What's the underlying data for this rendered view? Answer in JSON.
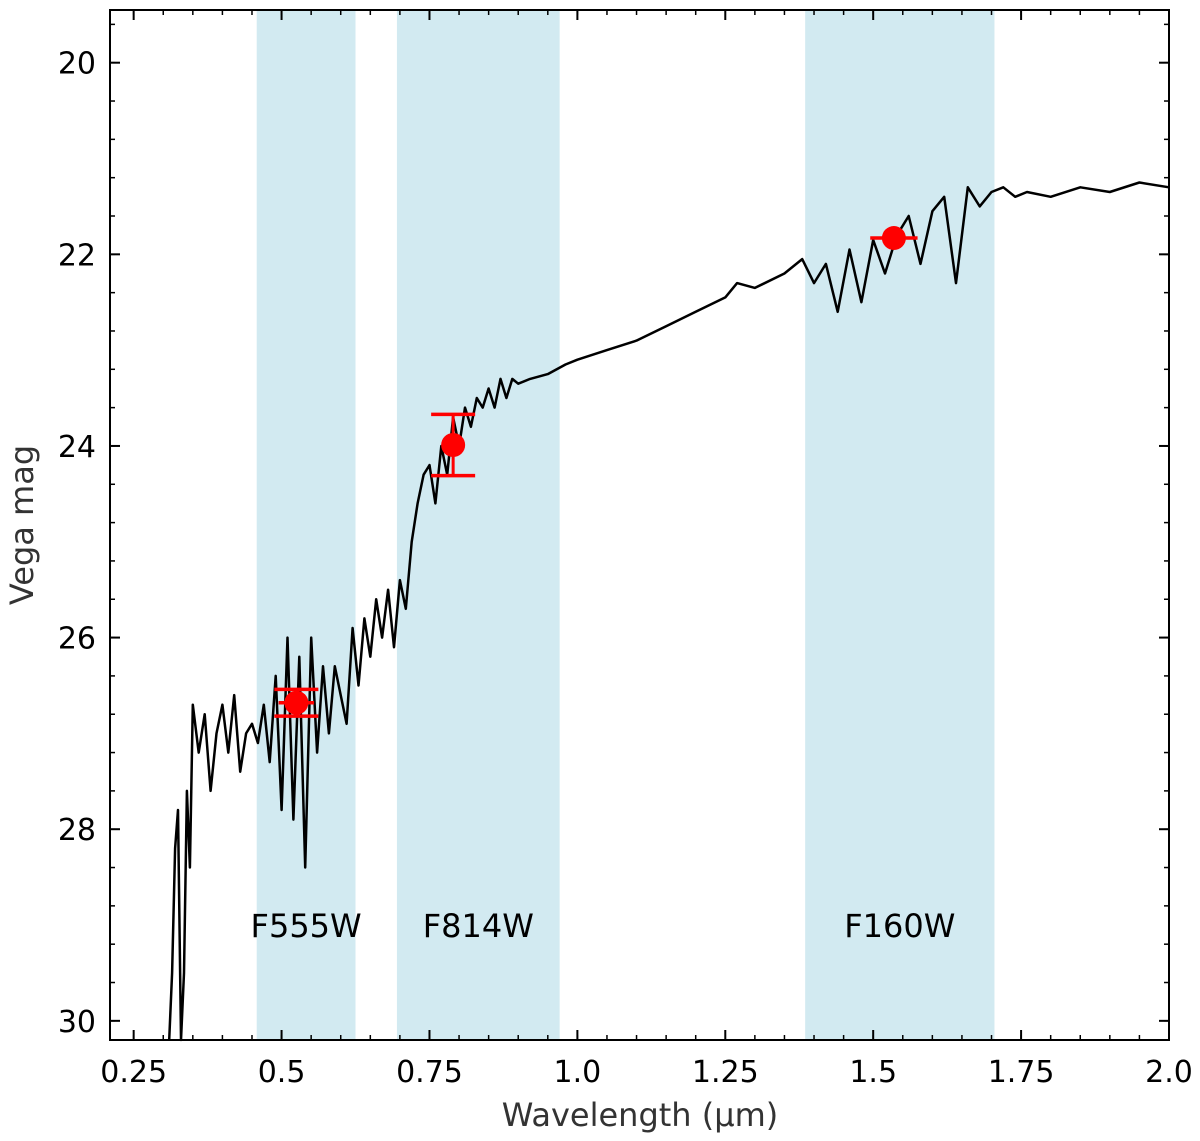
{
  "chart_data": {
    "type": "line",
    "title": "",
    "xlabel": "Wavelength (μm)",
    "ylabel": "Vega mag",
    "xlim": [
      0.21,
      2.0
    ],
    "ylim": [
      30.2,
      19.45
    ],
    "y_inverted": true,
    "grid": false,
    "x_ticks": [
      "0.25",
      "0.5",
      "0.75",
      "1.0",
      "1.25",
      "1.5",
      "1.75",
      "2.0"
    ],
    "y_ticks": [
      "20",
      "22",
      "24",
      "26",
      "28",
      "30"
    ],
    "colors": {
      "spectrum": "#000000",
      "photometry": "#ff0000",
      "band_fill": "#add8e6"
    },
    "bands": [
      {
        "label": "F555W",
        "x_min": 0.458,
        "x_max": 0.625
      },
      {
        "label": "F814W",
        "x_min": 0.695,
        "x_max": 0.97
      },
      {
        "label": "F160W",
        "x_min": 1.385,
        "x_max": 1.705
      }
    ],
    "photometry": [
      {
        "x": 0.525,
        "y": 26.68,
        "yerr": 0.14,
        "xerr": 0.03
      },
      {
        "x": 0.79,
        "y": 23.99,
        "yerr": 0.32,
        "xerr": 0.0
      },
      {
        "x": 1.535,
        "y": 21.83,
        "yerr": 0.0,
        "xerr": 0.04
      }
    ],
    "spectrum": {
      "name": "",
      "x": [
        0.31,
        0.315,
        0.32,
        0.325,
        0.33,
        0.335,
        0.34,
        0.345,
        0.35,
        0.36,
        0.37,
        0.38,
        0.39,
        0.4,
        0.41,
        0.42,
        0.43,
        0.44,
        0.45,
        0.46,
        0.47,
        0.48,
        0.49,
        0.5,
        0.51,
        0.52,
        0.53,
        0.54,
        0.55,
        0.56,
        0.57,
        0.58,
        0.59,
        0.6,
        0.61,
        0.62,
        0.63,
        0.64,
        0.65,
        0.66,
        0.67,
        0.68,
        0.69,
        0.7,
        0.71,
        0.72,
        0.73,
        0.74,
        0.75,
        0.76,
        0.77,
        0.78,
        0.79,
        0.8,
        0.81,
        0.82,
        0.83,
        0.84,
        0.85,
        0.86,
        0.87,
        0.88,
        0.89,
        0.9,
        0.92,
        0.95,
        0.98,
        1.0,
        1.05,
        1.1,
        1.15,
        1.2,
        1.25,
        1.27,
        1.3,
        1.35,
        1.38,
        1.4,
        1.42,
        1.44,
        1.46,
        1.48,
        1.5,
        1.52,
        1.54,
        1.56,
        1.58,
        1.6,
        1.62,
        1.64,
        1.66,
        1.68,
        1.7,
        1.72,
        1.74,
        1.76,
        1.8,
        1.85,
        1.9,
        1.95,
        2.0
      ],
      "y": [
        30.2,
        29.5,
        28.2,
        27.8,
        30.2,
        29.5,
        27.6,
        28.4,
        26.7,
        27.2,
        26.8,
        27.6,
        27.0,
        26.7,
        27.2,
        26.6,
        27.4,
        27.0,
        26.9,
        27.1,
        26.7,
        27.3,
        26.4,
        27.8,
        26.0,
        27.9,
        26.2,
        28.4,
        26.0,
        27.2,
        26.3,
        27.0,
        26.3,
        26.6,
        26.9,
        25.9,
        26.5,
        25.8,
        26.2,
        25.6,
        26.0,
        25.5,
        26.1,
        25.4,
        25.7,
        25.0,
        24.6,
        24.3,
        24.2,
        24.6,
        24.0,
        24.3,
        23.7,
        24.0,
        23.6,
        23.8,
        23.5,
        23.6,
        23.4,
        23.6,
        23.3,
        23.5,
        23.3,
        23.35,
        23.3,
        23.25,
        23.15,
        23.1,
        23.0,
        22.9,
        22.75,
        22.6,
        22.45,
        22.3,
        22.35,
        22.2,
        22.05,
        22.3,
        22.1,
        22.6,
        21.95,
        22.5,
        21.85,
        22.2,
        21.8,
        21.6,
        22.1,
        21.55,
        21.4,
        22.3,
        21.3,
        21.5,
        21.35,
        21.3,
        21.4,
        21.35,
        21.4,
        21.3,
        21.35,
        21.25,
        21.3
      ]
    }
  }
}
